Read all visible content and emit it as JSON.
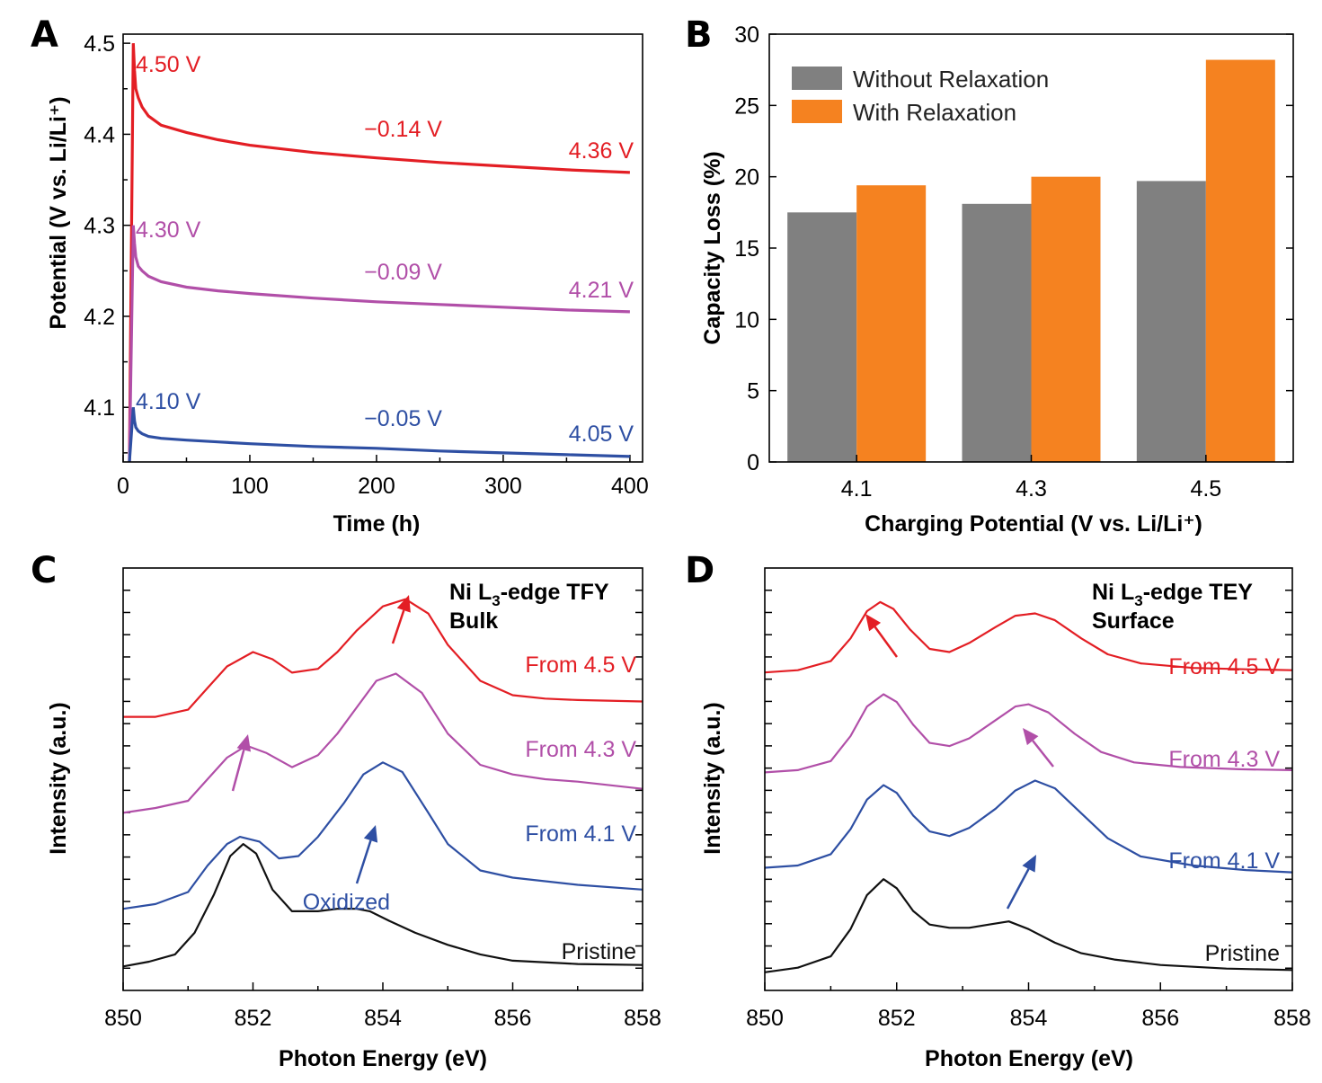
{
  "chart_data": [
    {
      "panel": "A",
      "type": "line",
      "xlabel": "Time (h)",
      "ylabel": "Potential (V vs. Li/Li⁺)",
      "xlim": [
        0,
        410
      ],
      "ylim": [
        4.04,
        4.51
      ],
      "xticks": [
        0,
        100,
        200,
        300,
        400
      ],
      "yticks": [
        4.1,
        4.2,
        4.3,
        4.4,
        4.5
      ],
      "ytick_labels": [
        "4.1",
        "4.2",
        "4.3",
        "4.4",
        "4.5"
      ],
      "series": [
        {
          "color": "#e31e24",
          "x": [
            5,
            8,
            9,
            10,
            12,
            15,
            20,
            30,
            50,
            75,
            100,
            150,
            200,
            250,
            300,
            350,
            400
          ],
          "y": [
            4.04,
            4.5,
            4.47,
            4.45,
            4.44,
            4.43,
            4.42,
            4.41,
            4.402,
            4.394,
            4.388,
            4.38,
            4.374,
            4.369,
            4.365,
            4.361,
            4.358
          ],
          "labels": {
            "start": "4.50 V",
            "delta": "−0.14 V",
            "end": "4.36 V"
          }
        },
        {
          "color": "#b14fa8",
          "x": [
            5,
            8,
            9,
            10,
            12,
            15,
            20,
            30,
            50,
            75,
            100,
            150,
            200,
            250,
            300,
            350,
            400
          ],
          "y": [
            4.04,
            4.3,
            4.28,
            4.265,
            4.255,
            4.25,
            4.244,
            4.238,
            4.232,
            4.228,
            4.225,
            4.22,
            4.216,
            4.213,
            4.21,
            4.207,
            4.205
          ],
          "labels": {
            "start": "4.30 V",
            "delta": "−0.09 V",
            "end": "4.21 V"
          }
        },
        {
          "color": "#2e4fa3",
          "x": [
            5,
            8,
            9,
            10,
            12,
            15,
            20,
            30,
            50,
            75,
            100,
            150,
            200,
            250,
            300,
            350,
            400
          ],
          "y": [
            4.04,
            4.1,
            4.085,
            4.078,
            4.074,
            4.071,
            4.068,
            4.066,
            4.064,
            4.062,
            4.06,
            4.057,
            4.055,
            4.052,
            4.05,
            4.048,
            4.046
          ],
          "labels": {
            "start": "4.10 V",
            "delta": "−0.05 V",
            "end": "4.05 V"
          }
        }
      ]
    },
    {
      "panel": "B",
      "type": "bar",
      "xlabel": "Charging Potential (V vs. Li/Li⁺)",
      "ylabel": "Capacity Loss (%)",
      "categories": [
        "4.1",
        "4.3",
        "4.5"
      ],
      "ylim": [
        0,
        30
      ],
      "yticks": [
        0,
        5,
        10,
        15,
        20,
        25,
        30
      ],
      "legend_position": "top-left",
      "series": [
        {
          "name": "Without Relaxation",
          "color": "#808080",
          "values": [
            17.5,
            18.1,
            19.7
          ]
        },
        {
          "name": "With Relaxation",
          "color": "#f58220",
          "values": [
            19.4,
            20.0,
            28.2
          ]
        }
      ]
    },
    {
      "panel": "C",
      "type": "line",
      "title": "Ni L₃-edge TFY",
      "subtitle": "Bulk",
      "xlabel": "Photon Energy (eV)",
      "ylabel": "Intensity (a.u.)",
      "xlim": [
        850,
        858
      ],
      "xticks": [
        850,
        852,
        854,
        856,
        858
      ],
      "series": [
        {
          "name": "From 4.5 V",
          "color": "#e31e24",
          "x": [
            850.0,
            850.5,
            851.0,
            851.3,
            851.6,
            852.0,
            852.3,
            852.6,
            853.0,
            853.3,
            853.6,
            854.0,
            854.35,
            854.7,
            855.0,
            855.5,
            856.0,
            856.5,
            857.0,
            858.0
          ],
          "y": [
            5.2,
            5.2,
            5.35,
            5.8,
            6.25,
            6.55,
            6.4,
            6.12,
            6.2,
            6.55,
            7.0,
            7.5,
            7.65,
            7.35,
            6.7,
            5.95,
            5.65,
            5.58,
            5.55,
            5.52
          ]
        },
        {
          "name": "From 4.3 V",
          "color": "#b14fa8",
          "x": [
            850.0,
            850.5,
            851.0,
            851.3,
            851.6,
            851.9,
            852.2,
            852.6,
            853.0,
            853.3,
            853.6,
            853.9,
            854.2,
            854.6,
            855.0,
            855.5,
            856.0,
            856.5,
            857.0,
            858.0
          ],
          "y": [
            3.2,
            3.3,
            3.45,
            3.9,
            4.35,
            4.6,
            4.45,
            4.15,
            4.4,
            4.85,
            5.4,
            5.95,
            6.1,
            5.7,
            4.85,
            4.2,
            4.0,
            3.9,
            3.85,
            3.7
          ]
        },
        {
          "name": "From 4.1 V",
          "color": "#2e4fa3",
          "x": [
            850.0,
            850.5,
            851.0,
            851.3,
            851.6,
            851.8,
            852.1,
            852.4,
            852.7,
            853.0,
            853.4,
            853.7,
            854.0,
            854.3,
            854.7,
            855.0,
            855.5,
            856.0,
            857.0,
            858.0
          ],
          "y": [
            1.2,
            1.3,
            1.55,
            2.1,
            2.55,
            2.7,
            2.6,
            2.25,
            2.3,
            2.7,
            3.4,
            4.0,
            4.25,
            4.05,
            3.2,
            2.55,
            2.0,
            1.85,
            1.7,
            1.6
          ]
        },
        {
          "name": "Pristine",
          "color": "#111111",
          "x": [
            850.0,
            850.4,
            850.8,
            851.1,
            851.4,
            851.65,
            851.85,
            852.05,
            852.3,
            852.6,
            853.0,
            853.3,
            853.6,
            853.8,
            854.1,
            854.5,
            855.0,
            855.5,
            856.0,
            857.0,
            858.0
          ],
          "y": [
            0.0,
            0.1,
            0.25,
            0.7,
            1.5,
            2.3,
            2.55,
            2.35,
            1.6,
            1.15,
            1.15,
            1.2,
            1.2,
            1.15,
            0.95,
            0.7,
            0.45,
            0.25,
            0.12,
            0.05,
            0.03
          ]
        }
      ],
      "annotation": "Oxidized"
    },
    {
      "panel": "D",
      "type": "line",
      "title": "Ni L₃-edge TEY",
      "subtitle": "Surface",
      "xlabel": "Photon Energy (eV)",
      "ylabel": "Intensity (a.u.)",
      "xlim": [
        850,
        858
      ],
      "xticks": [
        850,
        852,
        854,
        856,
        858
      ],
      "series": [
        {
          "name": "From 4.5 V",
          "color": "#e31e24",
          "x": [
            850.0,
            850.5,
            851.0,
            851.3,
            851.55,
            851.75,
            851.95,
            852.2,
            852.5,
            852.8,
            853.1,
            853.5,
            853.8,
            854.1,
            854.4,
            854.8,
            855.2,
            855.7,
            856.5,
            857.3,
            858.0
          ],
          "y": [
            6.6,
            6.65,
            6.85,
            7.35,
            7.95,
            8.15,
            8.0,
            7.55,
            7.12,
            7.05,
            7.25,
            7.6,
            7.85,
            7.9,
            7.75,
            7.35,
            7.0,
            6.8,
            6.7,
            6.67,
            6.65
          ]
        },
        {
          "name": "From 4.3 V",
          "color": "#b14fa8",
          "x": [
            850.0,
            850.5,
            851.0,
            851.3,
            851.55,
            851.8,
            852.0,
            852.25,
            852.5,
            852.8,
            853.1,
            853.5,
            853.8,
            854.0,
            854.3,
            854.7,
            855.1,
            855.6,
            856.3,
            857.2,
            858.0
          ],
          "y": [
            4.4,
            4.45,
            4.65,
            5.2,
            5.85,
            6.12,
            5.95,
            5.45,
            5.05,
            4.98,
            5.15,
            5.55,
            5.85,
            5.9,
            5.72,
            5.25,
            4.85,
            4.62,
            4.52,
            4.47,
            4.45
          ]
        },
        {
          "name": "From 4.1 V",
          "color": "#2e4fa3",
          "x": [
            850.0,
            850.5,
            851.0,
            851.3,
            851.55,
            851.8,
            852.0,
            852.25,
            852.5,
            852.8,
            853.1,
            853.5,
            853.8,
            854.1,
            854.4,
            854.8,
            855.2,
            855.7,
            856.5,
            857.3,
            858.0
          ],
          "y": [
            2.3,
            2.35,
            2.6,
            3.15,
            3.8,
            4.12,
            3.95,
            3.45,
            3.1,
            3.0,
            3.18,
            3.6,
            4.0,
            4.22,
            4.05,
            3.5,
            2.95,
            2.55,
            2.35,
            2.25,
            2.2
          ]
        },
        {
          "name": "Pristine",
          "color": "#111111",
          "x": [
            850.0,
            850.5,
            851.0,
            851.3,
            851.55,
            851.8,
            852.0,
            852.25,
            852.5,
            852.8,
            853.1,
            853.4,
            853.7,
            854.0,
            854.4,
            854.8,
            855.3,
            856.0,
            857.0,
            858.0
          ],
          "y": [
            0.0,
            0.1,
            0.35,
            0.95,
            1.7,
            2.05,
            1.85,
            1.35,
            1.05,
            0.98,
            0.98,
            1.05,
            1.12,
            0.95,
            0.65,
            0.42,
            0.28,
            0.16,
            0.08,
            0.05
          ]
        }
      ]
    }
  ],
  "panel_letters": {
    "a": "A",
    "b": "B",
    "c": "C",
    "d": "D"
  }
}
